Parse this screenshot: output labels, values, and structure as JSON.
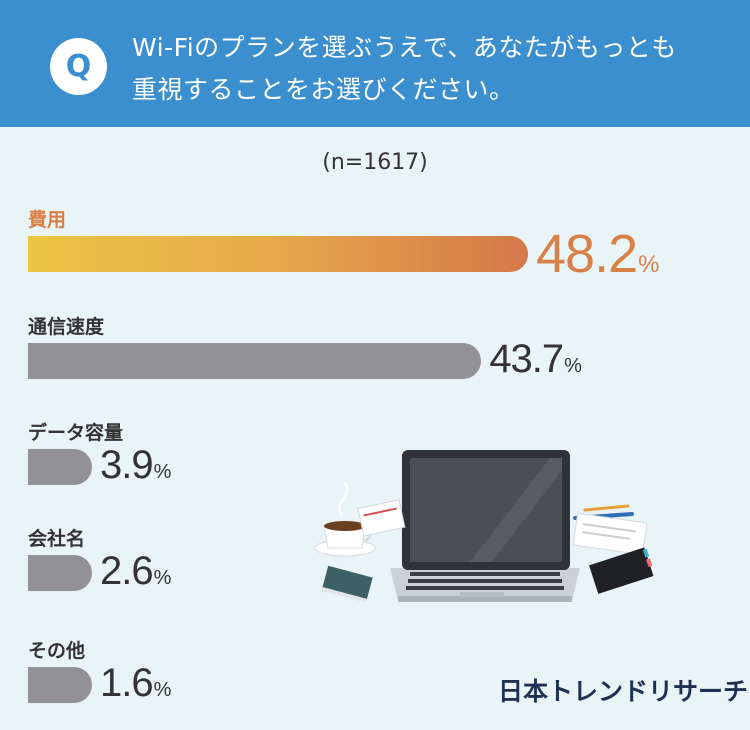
{
  "header": {
    "q_mark": "Q",
    "question_line1": "Wi-Fiのプランを選ぶうえで、あなたがもっとも",
    "question_line2": "重視することをお選びください。"
  },
  "sample_size": "(n=1617)",
  "percent_unit": "%",
  "brand": "日本トレンドリサーチ",
  "colors": {
    "header_bg": "#3c8fce",
    "page_bg": "#e9f4f7",
    "highlight": "#d98046",
    "bar_gray": "#929193",
    "gradient_start": "#ecc544",
    "gradient_end": "#d4784a"
  },
  "chart_data": {
    "type": "bar",
    "orientation": "horizontal",
    "categories": [
      "費用",
      "通信速度",
      "データ容量",
      "会社名",
      "その他"
    ],
    "values": [
      48.2,
      43.7,
      3.9,
      2.6,
      1.6
    ],
    "value_labels": [
      "48.2",
      "43.7",
      "3.9",
      "2.6",
      "1.6"
    ],
    "unit": "%",
    "highlighted_category": "費用",
    "grid": false,
    "legend": "none"
  }
}
